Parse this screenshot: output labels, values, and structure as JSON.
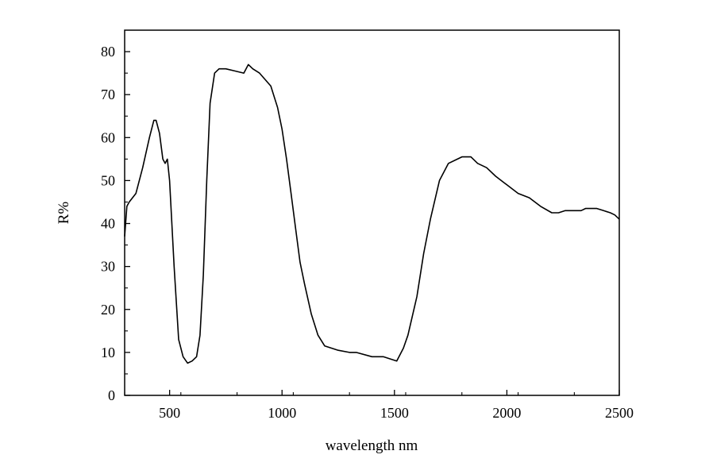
{
  "chart_data": {
    "type": "line",
    "title": "",
    "xlabel": "wavelength nm",
    "ylabel": "R%",
    "xlim": [
      300,
      2500
    ],
    "ylim": [
      0,
      85
    ],
    "x_ticks": [
      500,
      1000,
      1500,
      2000,
      2500
    ],
    "x_tick_labels": [
      "500",
      "1000",
      "1500",
      "2000",
      "2500"
    ],
    "y_ticks": [
      0,
      10,
      20,
      30,
      40,
      50,
      60,
      70,
      80
    ],
    "y_tick_labels": [
      "0",
      "10",
      "20",
      "30",
      "40",
      "50",
      "60",
      "70",
      "80"
    ],
    "grid": false,
    "legend": false,
    "line_color": "#000000",
    "series": [
      {
        "x": [
          300,
          310,
          320,
          350,
          380,
          410,
          430,
          440,
          455,
          470,
          480,
          490,
          500,
          520,
          540,
          560,
          580,
          600,
          620,
          635,
          650,
          665,
          680,
          700,
          720,
          750,
          790,
          830,
          850,
          870,
          900,
          950,
          980,
          1000,
          1020,
          1040,
          1060,
          1080,
          1100,
          1130,
          1160,
          1190,
          1220,
          1250,
          1300,
          1330,
          1400,
          1450,
          1480,
          1510,
          1540,
          1560,
          1600,
          1630,
          1660,
          1700,
          1740,
          1780,
          1800,
          1840,
          1870,
          1910,
          1950,
          2000,
          2050,
          2100,
          2150,
          2200,
          2230,
          2260,
          2300,
          2330,
          2350,
          2370,
          2400,
          2430,
          2460,
          2480,
          2500
        ],
        "y": [
          37,
          44,
          45,
          47,
          53,
          60,
          64,
          64,
          61,
          55,
          54,
          55,
          50,
          30,
          13,
          9,
          7.5,
          8,
          9,
          14,
          28,
          50,
          68,
          75,
          76,
          76,
          75.5,
          75,
          77,
          76,
          75,
          72,
          67,
          62,
          55,
          47,
          39,
          31,
          26,
          19,
          14,
          11.5,
          11,
          10.5,
          10,
          10,
          9,
          9,
          8.5,
          8,
          11,
          14,
          23,
          33,
          41,
          50,
          54,
          55,
          55.5,
          55.5,
          54,
          53,
          51,
          49,
          47,
          46,
          44,
          42.5,
          42.5,
          43,
          43,
          43,
          43.5,
          43.5,
          43.5,
          43,
          42.5,
          42,
          41
        ]
      }
    ]
  }
}
